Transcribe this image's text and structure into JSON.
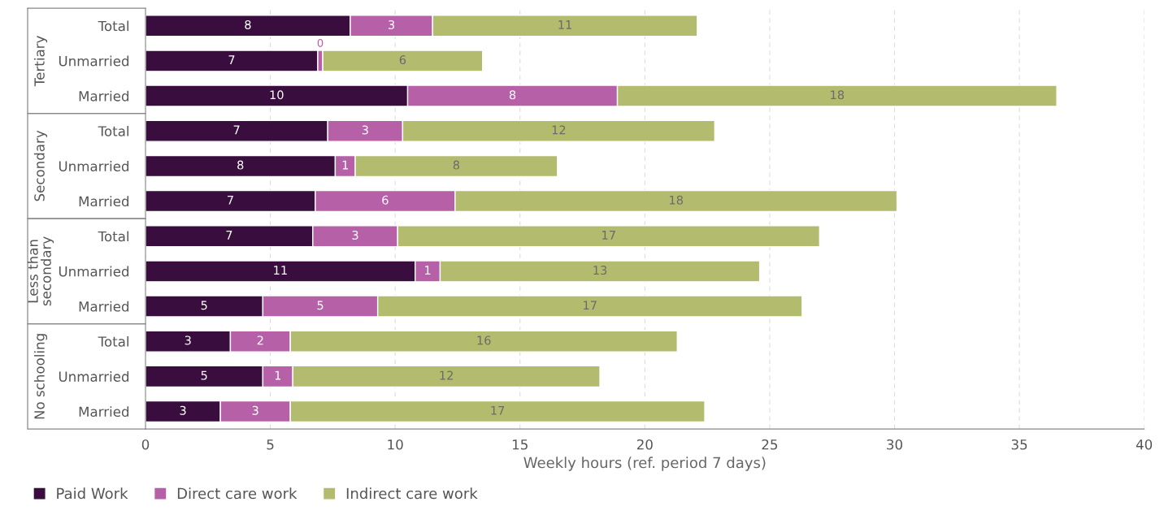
{
  "chart_data": {
    "type": "bar",
    "orientation": "horizontal",
    "stacked": true,
    "categories": [
      "Total",
      "Unmarried",
      "Married",
      "Total",
      "Unmarried",
      "Married",
      "Total",
      "Unmarried",
      "Married",
      "Total",
      "Unmarried",
      "Married"
    ],
    "series": [
      {
        "name": "Paid Work",
        "color": "#3a0d3f",
        "values": [
          8.2,
          6.9,
          10.5,
          7.3,
          7.6,
          6.8,
          6.7,
          10.8,
          4.7,
          3.4,
          4.7,
          3.0
        ],
        "value_labels": [
          "8",
          "7",
          "10",
          "7",
          "8",
          "7",
          "7",
          "11",
          "5",
          "3",
          "5",
          "3"
        ]
      },
      {
        "name": "Direct care work",
        "color": "#b660a8",
        "values": [
          3.3,
          0.2,
          8.4,
          3.0,
          0.8,
          5.6,
          3.4,
          1.0,
          4.6,
          2.4,
          1.2,
          2.8
        ],
        "value_labels": [
          "3",
          "0",
          "8",
          "3",
          "1",
          "6",
          "3",
          "1",
          "5",
          "2",
          "1",
          "3"
        ]
      },
      {
        "name": "Indirect care work",
        "color": "#b3bc6e",
        "values": [
          10.6,
          6.4,
          17.6,
          12.5,
          8.1,
          17.7,
          16.9,
          12.8,
          17.0,
          15.5,
          12.3,
          16.6
        ],
        "value_labels": [
          "11",
          "6",
          "18",
          "12",
          "8",
          "18",
          "17",
          "13",
          "17",
          "16",
          "12",
          "17"
        ]
      }
    ],
    "xlabel": "Weekly hours (ref. period 7 days)",
    "xlim": [
      0,
      40
    ],
    "xticks": [
      0,
      5,
      10,
      15,
      20,
      25,
      30,
      35,
      40
    ],
    "grid": "x",
    "legend": "bottom left",
    "annotations": [
      "Tertiary",
      "Secondary",
      "Less than\nsecondary",
      "No schooling"
    ]
  }
}
